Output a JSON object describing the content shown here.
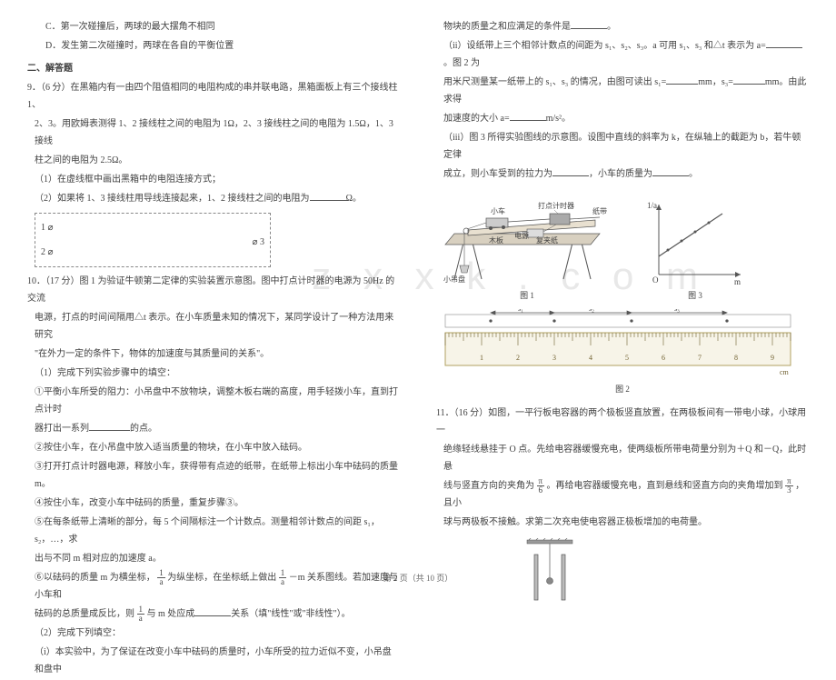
{
  "left": {
    "opt_c": "C．第一次碰撞后，两球的最大摆角不相同",
    "opt_d": "D．发生第二次碰撞时，两球在各自的平衡位置",
    "section": "二、解答题",
    "q9_head": "9．（6 分）在黑箱内有一由四个阻值相同的电阻构成的串并联电路，黑箱面板上有三个接线柱 1、",
    "q9_l2": "2、3。用欧姆表测得 1、2 接线柱之间的电阻为 1Ω，2、3 接线柱之间的电阻为 1.5Ω，1、3 接线",
    "q9_l3": "柱之间的电阻为 2.5Ω。",
    "q9_p1": "（1）在虚线框中画出黑箱中的电阻连接方式；",
    "q9_p2a": "（2）如果将 1、3 接线柱用导线连接起来，1、2 接线柱之间的电阻为",
    "q9_p2b": "Ω。",
    "term1": "1 ⌀",
    "term2": "2 ⌀",
    "term3": "⌀ 3",
    "q10_head": "10．（17 分）图 1 为验证牛顿第二定律的实验装置示意图。图中打点计时器的电源为 50Hz 的交流",
    "q10_l2": "电源，打点的时间间隔用△t 表示。在小车质量未知的情况下，某同学设计了一种方法用来研究",
    "q10_l3": "\"在外力一定的条件下，物体的加速度与其质量间的关系\"。",
    "q10_s1": "（1）完成下列实验步骤中的填空：",
    "q10_s1_1a": "①平衡小车所受的阻力：小吊盘中不放物块，调整木板右端的高度，用手轻拨小车，直到打点计时",
    "q10_s1_1b": "器打出一系列",
    "q10_s1_1c": "的点。",
    "q10_s1_2": "②按住小车，在小吊盘中放入适当质量的物块，在小车中放入砝码。",
    "q10_s1_3a": "③打开打点计时器电源，释放小车，获得带有点迹的纸带，在纸带上标出小车中砝码的质量 m。",
    "q10_s1_4": "④按住小车，改变小车中砝码的质量，重复步骤③。",
    "q10_s1_5a": "⑤在每条纸带上清晰的部分，每 5 个间隔标注一个计数点。测量相邻计数点的间距 s₁，s₂，…，求",
    "q10_s1_5b": "出与不同 m 相对应的加速度 a。",
    "q10_s1_6a": "⑥以砝码的质量 m 为横坐标，",
    "q10_s1_6b": "为纵坐标，在坐标纸上做出",
    "q10_s1_6c": "－m 关系图线。若加速度与小车和",
    "q10_s1_6d": "砝码的总质量成反比，则",
    "q10_s1_6e": "与 m 处应成",
    "q10_s1_6f": "关系（填\"线性\"或\"非线性\"）。",
    "q10_s2": "（2）完成下列填空：",
    "q10_s2_1": "（i）本实验中，为了保证在改变小车中砝码的质量时，小车所受的拉力近似不变，小吊盘和盘中"
  },
  "right": {
    "r1a": "物块的质量之和应满足的条件是",
    "r1b": "。",
    "r2a": "（ii）设纸带上三个相邻计数点的间距为 s₁、s₂、s₃。a 可用 s₁、s₃ 和△t 表示为 a=",
    "r2b": "。图 2 为",
    "r3a": "用米尺测量某一纸带上的 s₁、s₃ 的情况，由图可读出 s₁=",
    "r3b": "mm，s₃=",
    "r3c": "mm。由此求得",
    "r4a": "加速度的大小 a=",
    "r4b": "m/s²。",
    "r5a": "（iii）图 3 所得实验图线的示意图。设图中直线的斜率为 k，在纵轴上的截距为 b，若牛顿定律",
    "r6a": "成立，则小车受到的拉力为",
    "r6b": "，小车的质量为",
    "r6c": "。",
    "fig1_label": "图 1",
    "fig3_label": "图 3",
    "fig2_label": "图 2",
    "exp_labels": {
      "car": "小车",
      "timer": "打点计时器",
      "tape": "纸带",
      "power": "电源",
      "clamp": "复夹纸",
      "wood": "木板",
      "pan": "小吊盘"
    },
    "graph": {
      "y_label": "1/a",
      "x_label": "m",
      "origin": "O"
    },
    "q11_head": "11．（16 分）如图，一平行板电容器的两个极板竖直放置，在两极板间有一带电小球，小球用一",
    "q11_l2": "绝缘轻线悬挂于 O 点。先给电容器缓慢充电，使两级板所带电荷量分别为＋Q 和－Q，此时悬",
    "q11_l3a": "线与竖直方向的夹角为",
    "q11_l3b": "。再给电容器缓慢充电，直到悬线和竖直方向的夹角增加到",
    "q11_l3c": "，且小",
    "q11_l4": "球与两极板不接触。求第二次充电使电容器正极板增加的电荷量。",
    "pi6_num": "π",
    "pi6_den": "6",
    "pi3_num": "π",
    "pi3_den": "3"
  },
  "frac": {
    "one": "1",
    "a": "a"
  },
  "footer": "第 2 页（共 10 页）",
  "colors": {
    "text": "#404040",
    "light": "#888888",
    "ruler_bg": "#f7f4e8",
    "ruler_border": "#b0a060"
  }
}
